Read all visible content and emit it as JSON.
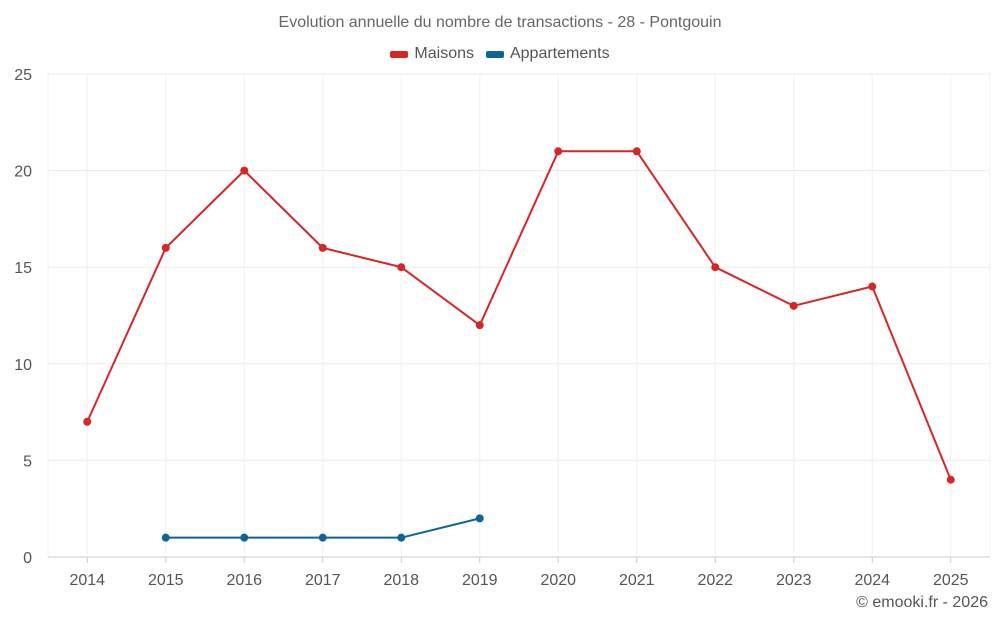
{
  "chart_data": {
    "type": "line",
    "title": "Evolution annuelle du nombre de transactions - 28 - Pontgouin",
    "categories": [
      "2014",
      "2015",
      "2016",
      "2017",
      "2018",
      "2019",
      "2020",
      "2021",
      "2022",
      "2023",
      "2024",
      "2025"
    ],
    "series": [
      {
        "name": "Maisons",
        "color": "#d62728",
        "values": [
          7,
          16,
          20,
          16,
          15,
          12,
          21,
          21,
          15,
          13,
          14,
          4
        ]
      },
      {
        "name": "Appartements",
        "color": "#0f6496",
        "values": [
          null,
          1,
          1,
          1,
          1,
          2,
          null,
          null,
          null,
          null,
          null,
          null
        ]
      }
    ],
    "yticks": [
      "0",
      "5",
      "10",
      "15",
      "20",
      "25"
    ],
    "ylim": [
      0,
      25
    ],
    "xlabel": "",
    "ylabel": "",
    "grid": true,
    "legend_position": "top-center"
  },
  "footer": {
    "credit": "© emooki.fr - 2026"
  }
}
